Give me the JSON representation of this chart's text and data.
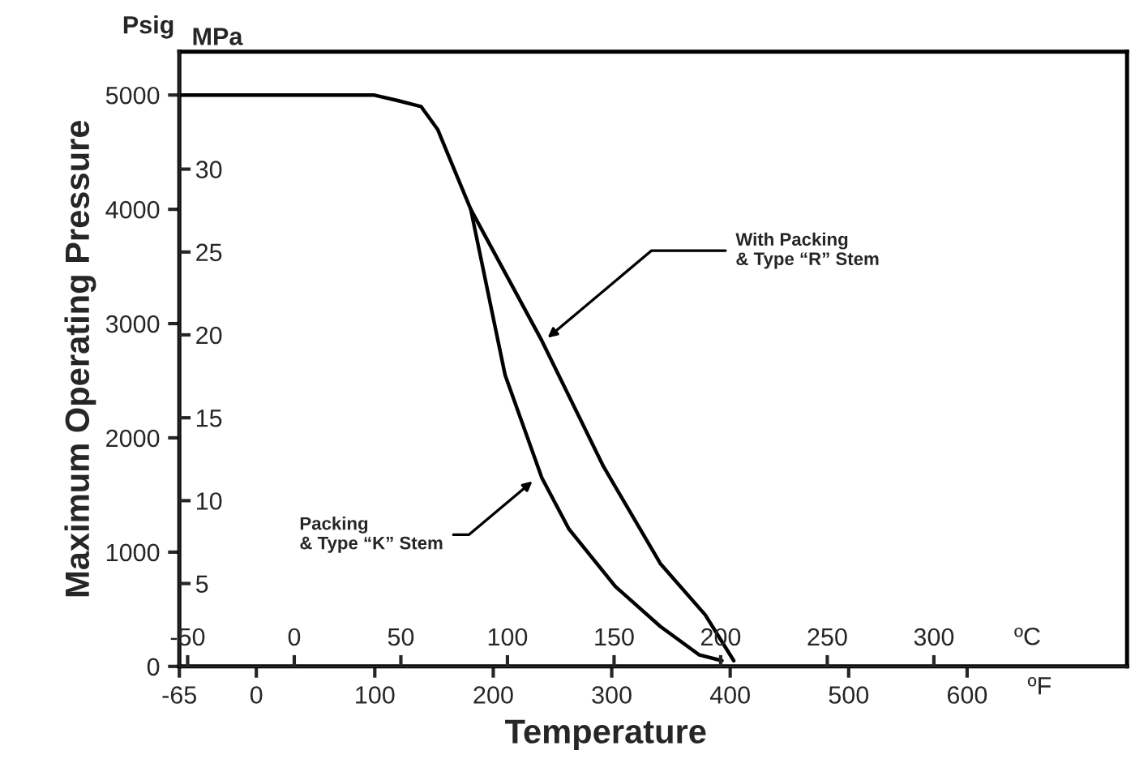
{
  "chart_data": {
    "type": "line",
    "xlabel": "Temperature",
    "ylabel": "Maximum Operating Pressure",
    "x2label": "ºC",
    "y2label": "MPa",
    "xlim": [
      -65,
      735
    ],
    "xticks": [
      -65,
      0,
      100,
      200,
      300,
      400,
      500,
      600
    ],
    "x2lim": [
      -53.9,
      390.6
    ],
    "x2ticks": [
      -50,
      0,
      50,
      100,
      150,
      200,
      250,
      300
    ],
    "ylim": [
      0,
      5380
    ],
    "yticks": [
      0,
      1000,
      2000,
      3000,
      4000,
      5000
    ],
    "y2lim": [
      0,
      37.09
    ],
    "y2ticks": [
      5,
      10,
      15,
      20,
      25,
      30
    ],
    "grid": false,
    "legend": false,
    "marker": "none",
    "line_style": "solid",
    "series": [
      {
        "color": "#000000",
        "x": [
          -65,
          99,
          120,
          139,
          153,
          167,
          181,
          241,
          293,
          341,
          379,
          403
        ],
        "values": [
          5000,
          5000,
          4950,
          4900,
          4700,
          4350,
          4000,
          2850,
          1750,
          900,
          450,
          50
        ]
      },
      {
        "color": "#000000",
        "x": [
          181,
          210,
          241,
          264,
          303,
          341,
          374,
          393
        ],
        "values": [
          4000,
          2550,
          1650,
          1200,
          700,
          350,
          100,
          50
        ]
      }
    ],
    "annotations": [
      {
        "text": "With Packing\n& Type “R” Stem",
        "x": 243,
        "y": 2850
      },
      {
        "text": "Packing\n& Type “K” Stem",
        "x": 236,
        "y": 1645
      },
      "Psig",
      "ºF"
    ]
  }
}
